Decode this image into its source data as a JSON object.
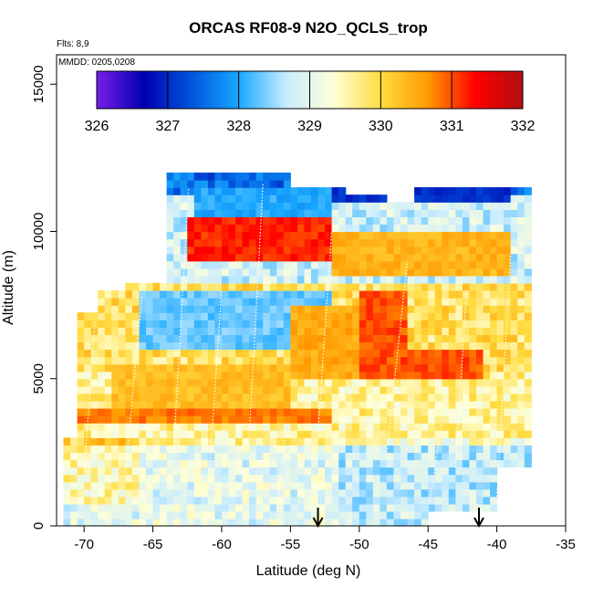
{
  "chart_data": {
    "type": "heatmap",
    "title": "ORCAS RF08-9 N2O_QCLS_trop",
    "notes": [
      "Flts: 8,9",
      "MMDD: 0205,0208"
    ],
    "xlabel": "Latitude (deg N)",
    "ylabel": "Altitude (m)",
    "xlim": [
      -72,
      -35
    ],
    "ylim": [
      0,
      16000
    ],
    "xticks": [
      -70,
      -65,
      -60,
      -55,
      -50,
      -45,
      -40,
      -35
    ],
    "yticks": [
      0,
      5000,
      10000,
      15000
    ],
    "colorbar": {
      "range": [
        326,
        332
      ],
      "ticks": [
        326,
        327,
        328,
        329,
        330,
        331,
        332
      ],
      "colors": [
        "#7a1ee8",
        "#0000b0",
        "#0055dd",
        "#18a8ff",
        "#c8ecff",
        "#ffffd8",
        "#ffdc40",
        "#ff9a00",
        "#ff0000",
        "#b01010"
      ]
    },
    "arrows_at_latitude": [
      -53,
      -41.3
    ],
    "regions": [
      {
        "x": [
          -62.5,
          -52
        ],
        "y": [
          9000,
          10300
        ],
        "value": 331.2
      },
      {
        "x": [
          -52,
          -39
        ],
        "y": [
          8500,
          10000
        ],
        "value": 330.4
      },
      {
        "x": [
          -50,
          -46.5
        ],
        "y": [
          5000,
          8000
        ],
        "value": 331.0
      },
      {
        "x": [
          -46.5,
          -41
        ],
        "y": [
          4800,
          6000
        ],
        "value": 331.0
      },
      {
        "x": [
          -55,
          -50
        ],
        "y": [
          5000,
          7500
        ],
        "value": 330.5
      },
      {
        "x": [
          -72,
          -52
        ],
        "y": [
          3500,
          4000
        ],
        "value": 330.8
      },
      {
        "x": [
          -68,
          -55
        ],
        "y": [
          4000,
          5500
        ],
        "value": 330.3
      },
      {
        "x": [
          -66,
          -52
        ],
        "y": [
          6000,
          8000
        ],
        "value": 328.3
      },
      {
        "x": [
          -62,
          -52
        ],
        "y": [
          10300,
          11500
        ],
        "value": 328.0
      },
      {
        "x": [
          -57,
          -39
        ],
        "y": [
          10800,
          11300
        ],
        "value": 327.0
      }
    ]
  }
}
